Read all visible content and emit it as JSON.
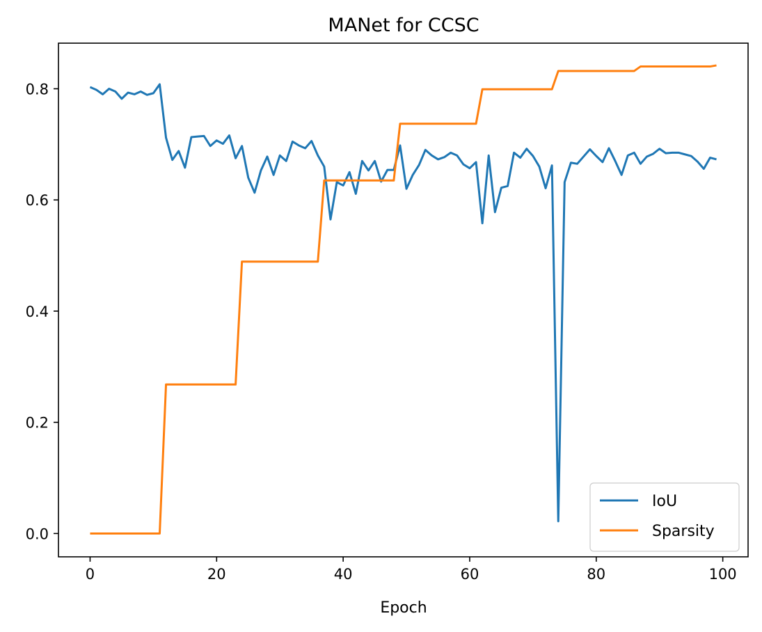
{
  "chart_data": {
    "type": "line",
    "title": "MANet for CCSC",
    "xlabel": "Epoch",
    "ylabel": "",
    "xlim": [
      -5,
      104
    ],
    "ylim": [
      -0.042,
      0.882
    ],
    "xticks": [
      0,
      20,
      40,
      60,
      80,
      100
    ],
    "yticks": [
      0.0,
      0.2,
      0.4,
      0.6,
      0.8
    ],
    "xtick_labels": [
      "0",
      "20",
      "40",
      "60",
      "80",
      "100"
    ],
    "ytick_labels": [
      "0.0",
      "0.2",
      "0.4",
      "0.6",
      "0.8"
    ],
    "legend_position": "lower-right",
    "grid": false,
    "series": [
      {
        "name": "IoU",
        "color": "#1f77b4",
        "x": [
          0,
          1,
          2,
          3,
          4,
          5,
          6,
          7,
          8,
          9,
          10,
          11,
          12,
          13,
          14,
          15,
          16,
          17,
          18,
          19,
          20,
          21,
          22,
          23,
          24,
          25,
          26,
          27,
          28,
          29,
          30,
          31,
          32,
          33,
          34,
          35,
          36,
          37,
          38,
          39,
          40,
          41,
          42,
          43,
          44,
          45,
          46,
          47,
          48,
          49,
          50,
          51,
          52,
          53,
          54,
          55,
          56,
          57,
          58,
          59,
          60,
          61,
          62,
          63,
          64,
          65,
          66,
          67,
          68,
          69,
          70,
          71,
          72,
          73,
          74,
          75,
          76,
          77,
          78,
          79,
          80,
          81,
          82,
          83,
          84,
          85,
          86,
          87,
          88,
          89,
          90,
          91,
          92,
          93,
          94,
          95,
          96,
          97,
          98,
          99
        ],
        "values": [
          0.803,
          0.798,
          0.79,
          0.8,
          0.795,
          0.782,
          0.793,
          0.79,
          0.795,
          0.789,
          0.792,
          0.808,
          0.712,
          0.672,
          0.688,
          0.658,
          0.713,
          0.714,
          0.715,
          0.697,
          0.707,
          0.701,
          0.716,
          0.675,
          0.697,
          0.64,
          0.613,
          0.653,
          0.678,
          0.645,
          0.68,
          0.67,
          0.705,
          0.698,
          0.693,
          0.706,
          0.68,
          0.66,
          0.565,
          0.632,
          0.626,
          0.65,
          0.611,
          0.67,
          0.653,
          0.67,
          0.633,
          0.654,
          0.654,
          0.698,
          0.62,
          0.645,
          0.663,
          0.69,
          0.68,
          0.673,
          0.677,
          0.685,
          0.68,
          0.664,
          0.657,
          0.668,
          0.558,
          0.68,
          0.578,
          0.622,
          0.625,
          0.685,
          0.676,
          0.692,
          0.679,
          0.66,
          0.621,
          0.662,
          0.022,
          0.632,
          0.667,
          0.665,
          0.678,
          0.691,
          0.679,
          0.668,
          0.693,
          0.67,
          0.645,
          0.68,
          0.685,
          0.665,
          0.678,
          0.683,
          0.692,
          0.684,
          0.685,
          0.685,
          0.682,
          0.679,
          0.669,
          0.656,
          0.676,
          0.673
        ]
      },
      {
        "name": "Sparsity",
        "color": "#ff7f0e",
        "x": [
          0,
          1,
          2,
          3,
          4,
          5,
          6,
          7,
          8,
          9,
          10,
          11,
          12,
          13,
          14,
          15,
          16,
          17,
          18,
          19,
          20,
          21,
          22,
          23,
          24,
          25,
          26,
          27,
          28,
          29,
          30,
          31,
          32,
          33,
          34,
          35,
          36,
          37,
          38,
          39,
          40,
          41,
          42,
          43,
          44,
          45,
          46,
          47,
          48,
          49,
          50,
          51,
          52,
          53,
          54,
          55,
          56,
          57,
          58,
          59,
          60,
          61,
          62,
          63,
          64,
          65,
          66,
          67,
          68,
          69,
          70,
          71,
          72,
          73,
          74,
          75,
          76,
          77,
          78,
          79,
          80,
          81,
          82,
          83,
          84,
          85,
          86,
          87,
          88,
          89,
          90,
          91,
          92,
          93,
          94,
          95,
          96,
          97,
          98,
          99
        ],
        "values": [
          0.0,
          0.0,
          0.0,
          0.0,
          0.0,
          0.0,
          0.0,
          0.0,
          0.0,
          0.0,
          0.0,
          0.0,
          0.268,
          0.268,
          0.268,
          0.268,
          0.268,
          0.268,
          0.268,
          0.268,
          0.268,
          0.268,
          0.268,
          0.268,
          0.489,
          0.489,
          0.489,
          0.489,
          0.489,
          0.489,
          0.489,
          0.489,
          0.489,
          0.489,
          0.489,
          0.489,
          0.489,
          0.635,
          0.635,
          0.635,
          0.635,
          0.635,
          0.635,
          0.635,
          0.635,
          0.635,
          0.635,
          0.635,
          0.635,
          0.737,
          0.737,
          0.737,
          0.737,
          0.737,
          0.737,
          0.737,
          0.737,
          0.737,
          0.737,
          0.737,
          0.737,
          0.737,
          0.799,
          0.799,
          0.799,
          0.799,
          0.799,
          0.799,
          0.799,
          0.799,
          0.799,
          0.799,
          0.799,
          0.799,
          0.832,
          0.832,
          0.832,
          0.832,
          0.832,
          0.832,
          0.832,
          0.832,
          0.832,
          0.832,
          0.832,
          0.832,
          0.832,
          0.84,
          0.84,
          0.84,
          0.84,
          0.84,
          0.84,
          0.84,
          0.84,
          0.84,
          0.84,
          0.84,
          0.84,
          0.842
        ]
      }
    ]
  }
}
